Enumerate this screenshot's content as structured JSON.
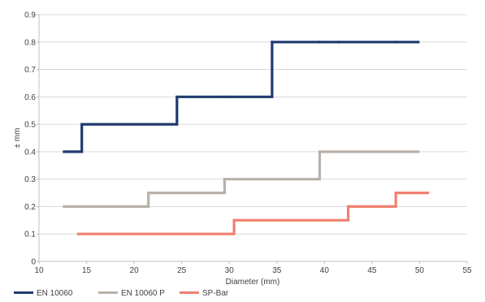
{
  "chart_data": {
    "type": "line",
    "step": true,
    "title": "",
    "xlabel": "Diameter (mm)",
    "ylabel": "± mm",
    "xlim": [
      10,
      55
    ],
    "ylim": [
      0,
      0.9
    ],
    "xticks": [
      10,
      15,
      20,
      25,
      30,
      35,
      40,
      45,
      50,
      55
    ],
    "yticks": [
      0,
      0.1,
      0.2,
      0.3,
      0.4,
      0.5,
      0.6,
      0.7,
      0.8,
      0.9
    ],
    "yticks_labels": [
      "0",
      "0.1",
      "0.2",
      "0.3",
      "0.4",
      "0.5",
      "0.6",
      "0.7",
      "0.8",
      "0.9"
    ],
    "grid": "horizontal",
    "legend": "bottom-left",
    "series": [
      {
        "name": "EN 10060",
        "color": "#1F3A6E",
        "points": [
          [
            12.5,
            0.4
          ],
          [
            14.5,
            0.4
          ],
          [
            14.5,
            0.5
          ],
          [
            24.5,
            0.5
          ],
          [
            24.5,
            0.6
          ],
          [
            34.5,
            0.6
          ],
          [
            34.5,
            0.8
          ],
          [
            50,
            0.8
          ]
        ],
        "markers": [
          [
            14.5,
            0.5
          ],
          [
            24.5,
            0.6
          ],
          [
            29.5,
            0.6
          ],
          [
            34.5,
            0.8
          ],
          [
            39.5,
            0.8
          ],
          [
            41.5,
            0.8
          ],
          [
            47.5,
            0.8
          ]
        ]
      },
      {
        "name": "EN 10060 P",
        "color": "#B8B1AA",
        "points": [
          [
            12.5,
            0.2
          ],
          [
            21.5,
            0.2
          ],
          [
            21.5,
            0.25
          ],
          [
            29.5,
            0.25
          ],
          [
            29.5,
            0.3
          ],
          [
            39.5,
            0.3
          ],
          [
            39.5,
            0.4
          ],
          [
            50,
            0.4
          ]
        ],
        "markers": [
          [
            21.5,
            0.25
          ],
          [
            29.5,
            0.3
          ],
          [
            39.5,
            0.4
          ],
          [
            42,
            0.4
          ],
          [
            47.5,
            0.4
          ]
        ]
      },
      {
        "name": "SP-Bar",
        "color": "#EE8070",
        "points": [
          [
            14,
            0.1
          ],
          [
            30.5,
            0.1
          ],
          [
            30.5,
            0.15
          ],
          [
            42.5,
            0.15
          ],
          [
            42.5,
            0.2
          ],
          [
            47.5,
            0.2
          ],
          [
            47.5,
            0.25
          ],
          [
            51,
            0.25
          ]
        ],
        "markers": [
          [
            30.5,
            0.15
          ],
          [
            42.5,
            0.2
          ],
          [
            47.5,
            0.25
          ]
        ]
      }
    ]
  }
}
